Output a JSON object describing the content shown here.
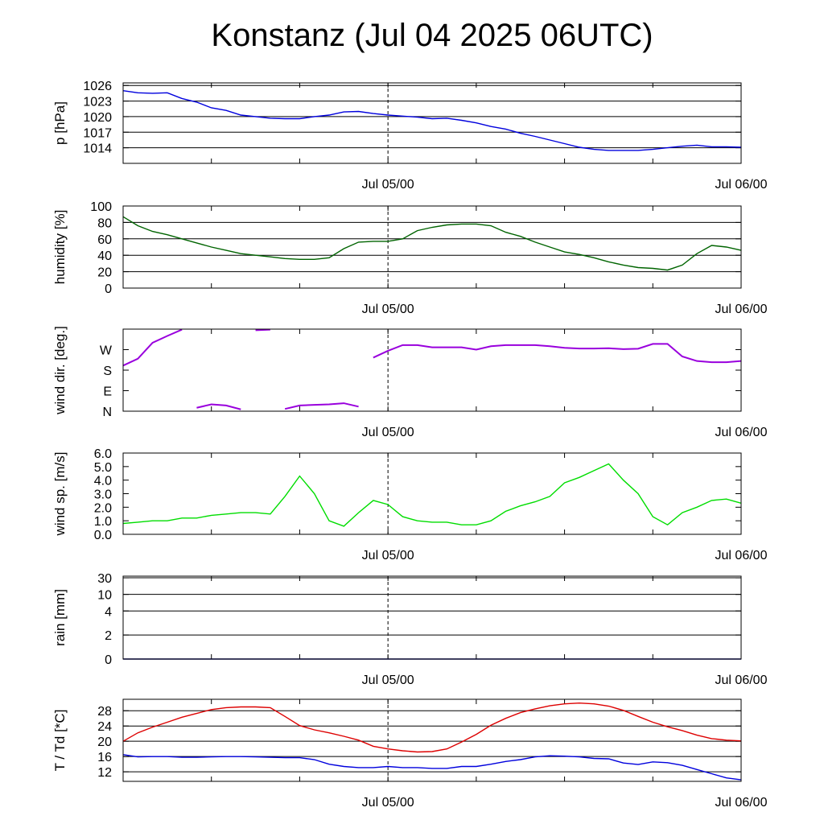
{
  "title": "Konstanz (Jul 04 2025 06UTC)",
  "time_axis": {
    "start": "2025-07-04T06:00Z",
    "end": "2025-07-06T00:00Z",
    "tick_labels": [
      {
        "label": "Jul 05/00",
        "at": "2025-07-05T00:00Z"
      },
      {
        "label": "Jul 06/00",
        "at": "2025-07-06T00:00Z"
      }
    ],
    "minor_ticks_every_hours": 6,
    "marker_line_at": "2025-07-05T00:00Z"
  },
  "chart_data": [
    {
      "type": "line",
      "ylabel": "p [hPa]",
      "ylim": [
        1011,
        1026.5
      ],
      "y_ticks": [
        1014,
        1017,
        1020,
        1023,
        1026
      ],
      "grid": true,
      "series": [
        {
          "color": "#0000dd",
          "x": [
            "2025-07-04T06:00Z",
            "2025-07-04T07:00Z",
            "2025-07-04T08:00Z",
            "2025-07-04T09:00Z",
            "2025-07-04T10:00Z",
            "2025-07-04T11:00Z",
            "2025-07-04T12:00Z",
            "2025-07-04T13:00Z",
            "2025-07-04T14:00Z",
            "2025-07-04T15:00Z",
            "2025-07-04T16:00Z",
            "2025-07-04T17:00Z",
            "2025-07-04T18:00Z",
            "2025-07-04T19:00Z",
            "2025-07-04T20:00Z",
            "2025-07-04T21:00Z",
            "2025-07-04T22:00Z",
            "2025-07-04T23:00Z",
            "2025-07-05T00:00Z",
            "2025-07-05T01:00Z",
            "2025-07-05T02:00Z",
            "2025-07-05T03:00Z",
            "2025-07-05T04:00Z",
            "2025-07-05T05:00Z",
            "2025-07-05T06:00Z",
            "2025-07-05T07:00Z",
            "2025-07-05T08:00Z",
            "2025-07-05T09:00Z",
            "2025-07-05T10:00Z",
            "2025-07-05T11:00Z",
            "2025-07-05T12:00Z",
            "2025-07-05T13:00Z",
            "2025-07-05T14:00Z",
            "2025-07-05T15:00Z",
            "2025-07-05T16:00Z",
            "2025-07-05T17:00Z",
            "2025-07-05T18:00Z",
            "2025-07-05T19:00Z",
            "2025-07-05T20:00Z",
            "2025-07-05T21:00Z",
            "2025-07-05T22:00Z",
            "2025-07-05T23:00Z",
            "2025-07-06T00:00Z"
          ],
          "y": [
            1025.0,
            1024.6,
            1024.5,
            1024.6,
            1023.5,
            1022.8,
            1021.7,
            1021.2,
            1020.3,
            1020.0,
            1019.7,
            1019.6,
            1019.6,
            1020.0,
            1020.3,
            1020.9,
            1021.0,
            1020.6,
            1020.3,
            1020.1,
            1019.9,
            1019.6,
            1019.7,
            1019.3,
            1018.8,
            1018.1,
            1017.6,
            1016.8,
            1016.2,
            1015.5,
            1014.8,
            1014.1,
            1013.7,
            1013.5,
            1013.5,
            1013.5,
            1013.7,
            1014.0,
            1014.3,
            1014.5,
            1014.2,
            1014.2,
            1014.1
          ]
        }
      ]
    },
    {
      "type": "line",
      "ylabel": "humidity [%]",
      "ylim": [
        0,
        100
      ],
      "y_ticks": [
        0,
        20,
        40,
        60,
        80,
        100
      ],
      "grid": true,
      "series": [
        {
          "color": "#006400",
          "x": [
            "2025-07-04T06:00Z",
            "2025-07-04T07:00Z",
            "2025-07-04T08:00Z",
            "2025-07-04T09:00Z",
            "2025-07-04T10:00Z",
            "2025-07-04T11:00Z",
            "2025-07-04T12:00Z",
            "2025-07-04T13:00Z",
            "2025-07-04T14:00Z",
            "2025-07-04T15:00Z",
            "2025-07-04T16:00Z",
            "2025-07-04T17:00Z",
            "2025-07-04T18:00Z",
            "2025-07-04T19:00Z",
            "2025-07-04T20:00Z",
            "2025-07-04T21:00Z",
            "2025-07-04T22:00Z",
            "2025-07-04T23:00Z",
            "2025-07-05T00:00Z",
            "2025-07-05T01:00Z",
            "2025-07-05T02:00Z",
            "2025-07-05T03:00Z",
            "2025-07-05T04:00Z",
            "2025-07-05T05:00Z",
            "2025-07-05T06:00Z",
            "2025-07-05T07:00Z",
            "2025-07-05T08:00Z",
            "2025-07-05T09:00Z",
            "2025-07-05T10:00Z",
            "2025-07-05T11:00Z",
            "2025-07-05T12:00Z",
            "2025-07-05T13:00Z",
            "2025-07-05T14:00Z",
            "2025-07-05T15:00Z",
            "2025-07-05T16:00Z",
            "2025-07-05T17:00Z",
            "2025-07-05T18:00Z",
            "2025-07-05T19:00Z",
            "2025-07-05T20:00Z",
            "2025-07-05T21:00Z",
            "2025-07-05T22:00Z",
            "2025-07-05T23:00Z",
            "2025-07-06T00:00Z"
          ],
          "y": [
            87,
            76,
            69,
            65,
            60,
            55,
            50,
            46,
            42,
            40,
            38,
            36,
            35,
            35,
            37,
            48,
            56,
            57,
            57,
            60,
            70,
            74,
            77,
            78,
            78,
            76,
            68,
            63,
            56,
            50,
            44,
            41,
            37,
            32,
            28,
            25,
            24,
            22,
            28,
            42,
            52,
            50,
            46
          ]
        }
      ]
    },
    {
      "type": "scatter",
      "ylabel": "wind dir. [deg.]",
      "ylim": [
        0,
        360
      ],
      "y_ticks": [
        0,
        90,
        180,
        270,
        360
      ],
      "y_tick_labels": [
        "N",
        "E",
        "S",
        "W",
        ""
      ],
      "grid": false,
      "series": [
        {
          "color": "#9900dd",
          "x": [
            "2025-07-04T06:00Z",
            "2025-07-04T07:00Z",
            "2025-07-04T08:00Z",
            "2025-07-04T09:00Z",
            "2025-07-04T10:00Z",
            "2025-07-04T11:00Z",
            "2025-07-04T12:00Z",
            "2025-07-04T13:00Z",
            "2025-07-04T14:00Z",
            "2025-07-04T15:00Z",
            "2025-07-04T16:00Z",
            "2025-07-04T17:00Z",
            "2025-07-04T18:00Z",
            "2025-07-04T19:00Z",
            "2025-07-04T20:00Z",
            "2025-07-04T21:00Z",
            "2025-07-04T22:00Z",
            "2025-07-04T23:00Z",
            "2025-07-05T00:00Z",
            "2025-07-05T01:00Z",
            "2025-07-05T02:00Z",
            "2025-07-05T03:00Z",
            "2025-07-05T04:00Z",
            "2025-07-05T05:00Z",
            "2025-07-05T06:00Z",
            "2025-07-05T07:00Z",
            "2025-07-05T08:00Z",
            "2025-07-05T09:00Z",
            "2025-07-05T10:00Z",
            "2025-07-05T11:00Z",
            "2025-07-05T12:00Z",
            "2025-07-05T13:00Z",
            "2025-07-05T14:00Z",
            "2025-07-05T15:00Z",
            "2025-07-05T16:00Z",
            "2025-07-05T17:00Z",
            "2025-07-05T18:00Z",
            "2025-07-05T19:00Z",
            "2025-07-05T20:00Z",
            "2025-07-05T21:00Z",
            "2025-07-05T22:00Z",
            "2025-07-05T23:00Z",
            "2025-07-06T00:00Z"
          ],
          "y": [
            200,
            230,
            300,
            330,
            358,
            15,
            30,
            25,
            8,
            355,
            358,
            10,
            25,
            28,
            30,
            35,
            20,
            235,
            265,
            290,
            290,
            280,
            280,
            280,
            270,
            285,
            290,
            290,
            290,
            285,
            278,
            275,
            275,
            276,
            272,
            274,
            295,
            295,
            240,
            220,
            215,
            215,
            220
          ]
        }
      ]
    },
    {
      "type": "line",
      "ylabel": "wind sp. [m/s]",
      "ylim": [
        0,
        6
      ],
      "y_ticks": [
        0.0,
        1.0,
        2.0,
        3.0,
        4.0,
        5.0,
        6.0
      ],
      "y_tick_labels": [
        "0.0",
        "1.0",
        "2.0",
        "3.0",
        "4.0",
        "5.0",
        "6.0"
      ],
      "grid": false,
      "series": [
        {
          "color": "#00dd00",
          "x": [
            "2025-07-04T06:00Z",
            "2025-07-04T07:00Z",
            "2025-07-04T08:00Z",
            "2025-07-04T09:00Z",
            "2025-07-04T10:00Z",
            "2025-07-04T11:00Z",
            "2025-07-04T12:00Z",
            "2025-07-04T13:00Z",
            "2025-07-04T14:00Z",
            "2025-07-04T15:00Z",
            "2025-07-04T16:00Z",
            "2025-07-04T17:00Z",
            "2025-07-04T18:00Z",
            "2025-07-04T19:00Z",
            "2025-07-04T20:00Z",
            "2025-07-04T21:00Z",
            "2025-07-04T22:00Z",
            "2025-07-04T23:00Z",
            "2025-07-05T00:00Z",
            "2025-07-05T01:00Z",
            "2025-07-05T02:00Z",
            "2025-07-05T03:00Z",
            "2025-07-05T04:00Z",
            "2025-07-05T05:00Z",
            "2025-07-05T06:00Z",
            "2025-07-05T07:00Z",
            "2025-07-05T08:00Z",
            "2025-07-05T09:00Z",
            "2025-07-05T10:00Z",
            "2025-07-05T11:00Z",
            "2025-07-05T12:00Z",
            "2025-07-05T13:00Z",
            "2025-07-05T14:00Z",
            "2025-07-05T15:00Z",
            "2025-07-05T16:00Z",
            "2025-07-05T17:00Z",
            "2025-07-05T18:00Z",
            "2025-07-05T19:00Z",
            "2025-07-05T20:00Z",
            "2025-07-05T21:00Z",
            "2025-07-05T22:00Z",
            "2025-07-05T23:00Z",
            "2025-07-06T00:00Z"
          ],
          "y": [
            0.8,
            0.9,
            1.0,
            1.0,
            1.2,
            1.2,
            1.4,
            1.5,
            1.6,
            1.6,
            1.5,
            2.8,
            4.3,
            3.0,
            1.0,
            0.6,
            1.6,
            2.5,
            2.2,
            1.3,
            1.0,
            0.9,
            0.9,
            0.7,
            0.7,
            1.0,
            1.7,
            2.1,
            2.4,
            2.8,
            3.8,
            4.2,
            4.7,
            5.2,
            4.0,
            3.0,
            1.3,
            0.7,
            1.6,
            2.0,
            2.5,
            2.6,
            2.3
          ]
        }
      ]
    },
    {
      "type": "line",
      "ylabel": "rain [mm]",
      "y_ticks": [
        0,
        2,
        4,
        10,
        30
      ],
      "y_tick_labels": [
        "0",
        "2",
        "4",
        "10",
        "30"
      ],
      "y_scale": "non-linear",
      "grid": true,
      "series": [
        {
          "color": "#000080",
          "x": [
            "2025-07-04T06:00Z",
            "2025-07-06T00:00Z"
          ],
          "y": [
            0,
            0
          ]
        }
      ]
    },
    {
      "type": "line",
      "ylabel": "T / Td [*C]",
      "ylim": [
        9.5,
        31
      ],
      "y_ticks": [
        12,
        16,
        20,
        24,
        28
      ],
      "grid": true,
      "series": [
        {
          "color": "#dd0000",
          "x": [
            "2025-07-04T06:00Z",
            "2025-07-04T07:00Z",
            "2025-07-04T08:00Z",
            "2025-07-04T09:00Z",
            "2025-07-04T10:00Z",
            "2025-07-04T11:00Z",
            "2025-07-04T12:00Z",
            "2025-07-04T13:00Z",
            "2025-07-04T14:00Z",
            "2025-07-04T15:00Z",
            "2025-07-04T16:00Z",
            "2025-07-04T17:00Z",
            "2025-07-04T18:00Z",
            "2025-07-04T19:00Z",
            "2025-07-04T20:00Z",
            "2025-07-04T21:00Z",
            "2025-07-04T22:00Z",
            "2025-07-04T23:00Z",
            "2025-07-05T00:00Z",
            "2025-07-05T01:00Z",
            "2025-07-05T02:00Z",
            "2025-07-05T03:00Z",
            "2025-07-05T04:00Z",
            "2025-07-05T05:00Z",
            "2025-07-05T06:00Z",
            "2025-07-05T07:00Z",
            "2025-07-05T08:00Z",
            "2025-07-05T09:00Z",
            "2025-07-05T10:00Z",
            "2025-07-05T11:00Z",
            "2025-07-05T12:00Z",
            "2025-07-05T13:00Z",
            "2025-07-05T14:00Z",
            "2025-07-05T15:00Z",
            "2025-07-05T16:00Z",
            "2025-07-05T17:00Z",
            "2025-07-05T18:00Z",
            "2025-07-05T19:00Z",
            "2025-07-05T20:00Z",
            "2025-07-05T21:00Z",
            "2025-07-05T22:00Z",
            "2025-07-05T23:00Z",
            "2025-07-06T00:00Z"
          ],
          "y": [
            20.0,
            22.2,
            23.7,
            25.0,
            26.3,
            27.3,
            28.3,
            28.8,
            29.0,
            29.0,
            28.8,
            26.5,
            24.1,
            23.0,
            22.2,
            21.3,
            20.3,
            18.7,
            18.0,
            17.5,
            17.2,
            17.3,
            18.0,
            19.8,
            21.8,
            24.2,
            26.0,
            27.5,
            28.5,
            29.3,
            29.8,
            30.0,
            29.8,
            29.2,
            28.1,
            26.5,
            25.0,
            23.8,
            22.8,
            21.6,
            20.7,
            20.3,
            20.1
          ]
        },
        {
          "color": "#0000dd",
          "x": [
            "2025-07-04T06:00Z",
            "2025-07-04T07:00Z",
            "2025-07-04T08:00Z",
            "2025-07-04T09:00Z",
            "2025-07-04T10:00Z",
            "2025-07-04T11:00Z",
            "2025-07-04T12:00Z",
            "2025-07-04T13:00Z",
            "2025-07-04T14:00Z",
            "2025-07-04T15:00Z",
            "2025-07-04T16:00Z",
            "2025-07-04T17:00Z",
            "2025-07-04T18:00Z",
            "2025-07-04T19:00Z",
            "2025-07-04T20:00Z",
            "2025-07-04T21:00Z",
            "2025-07-04T22:00Z",
            "2025-07-04T23:00Z",
            "2025-07-05T00:00Z",
            "2025-07-05T01:00Z",
            "2025-07-05T02:00Z",
            "2025-07-05T03:00Z",
            "2025-07-05T04:00Z",
            "2025-07-05T05:00Z",
            "2025-07-05T06:00Z",
            "2025-07-05T07:00Z",
            "2025-07-05T08:00Z",
            "2025-07-05T09:00Z",
            "2025-07-05T10:00Z",
            "2025-07-05T11:00Z",
            "2025-07-05T12:00Z",
            "2025-07-05T13:00Z",
            "2025-07-05T14:00Z",
            "2025-07-05T15:00Z",
            "2025-07-05T16:00Z",
            "2025-07-05T17:00Z",
            "2025-07-05T18:00Z",
            "2025-07-05T19:00Z",
            "2025-07-05T20:00Z",
            "2025-07-05T21:00Z",
            "2025-07-05T22:00Z",
            "2025-07-05T23:00Z",
            "2025-07-06T00:00Z"
          ],
          "y": [
            16.5,
            15.9,
            16.0,
            16.0,
            15.8,
            15.8,
            15.9,
            16.0,
            16.0,
            15.9,
            15.8,
            15.7,
            15.7,
            15.2,
            14.0,
            13.4,
            13.1,
            13.1,
            13.4,
            13.1,
            13.1,
            12.9,
            12.9,
            13.4,
            13.4,
            14.0,
            14.7,
            15.2,
            15.9,
            16.2,
            16.1,
            15.9,
            15.5,
            15.4,
            14.3,
            13.9,
            14.6,
            14.4,
            13.7,
            12.6,
            11.5,
            10.4,
            9.9
          ]
        }
      ]
    }
  ]
}
